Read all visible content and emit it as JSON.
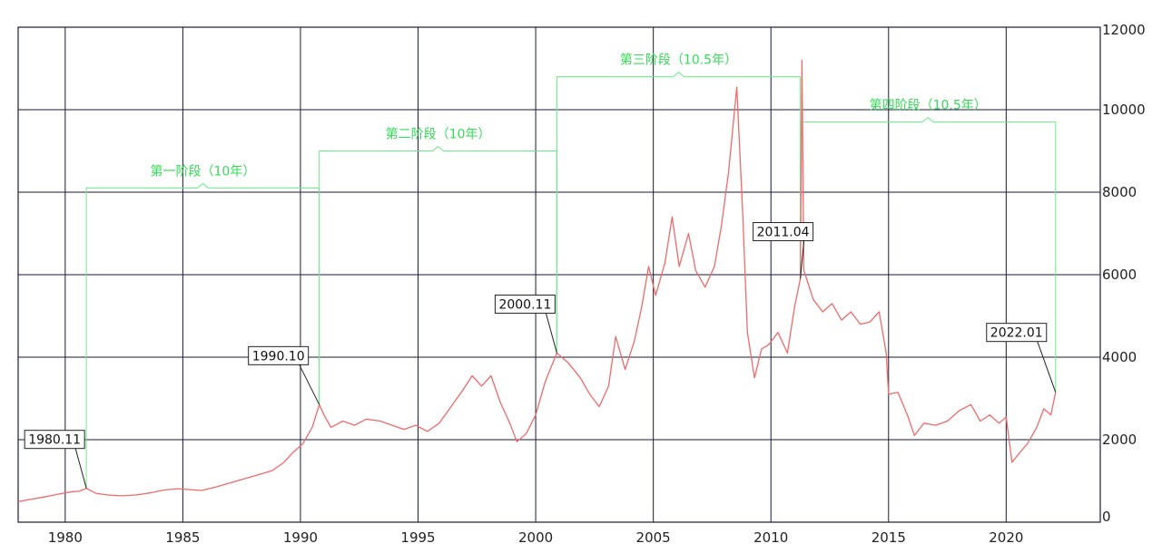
{
  "colors": {
    "price_line": "#f06a6a",
    "grid": "#1a1a3a",
    "phase": "#66ee88",
    "callout": "#222222"
  },
  "chart_data": {
    "type": "line",
    "title": "",
    "xlabel": "",
    "ylabel": "",
    "xlim": [
      1978.0,
      2024.0
    ],
    "ylim": [
      0,
      12000
    ],
    "x_ticks": [
      "1980",
      "1985",
      "1990",
      "1995",
      "2000",
      "2005",
      "2010",
      "2015",
      "2020"
    ],
    "y_ticks": [
      "0",
      "2000",
      "4000",
      "6000",
      "8000",
      "10000",
      "12000"
    ],
    "grid": true,
    "series": [
      {
        "name": "",
        "points": [
          [
            1978.0,
            500
          ],
          [
            1978.6,
            560
          ],
          [
            1979.2,
            620
          ],
          [
            1979.8,
            690
          ],
          [
            1980.3,
            740
          ],
          [
            1980.6,
            750
          ],
          [
            1980.9,
            820
          ],
          [
            1981.3,
            700
          ],
          [
            1981.8,
            660
          ],
          [
            1982.4,
            640
          ],
          [
            1983.0,
            660
          ],
          [
            1983.6,
            710
          ],
          [
            1984.2,
            780
          ],
          [
            1984.8,
            810
          ],
          [
            1985.3,
            790
          ],
          [
            1985.8,
            770
          ],
          [
            1986.4,
            850
          ],
          [
            1987.0,
            950
          ],
          [
            1987.6,
            1050
          ],
          [
            1988.2,
            1150
          ],
          [
            1988.8,
            1250
          ],
          [
            1989.3,
            1450
          ],
          [
            1989.7,
            1700
          ],
          [
            1990.1,
            1900
          ],
          [
            1990.5,
            2300
          ],
          [
            1990.8,
            2850
          ],
          [
            1991.0,
            2600
          ],
          [
            1991.3,
            2300
          ],
          [
            1991.8,
            2450
          ],
          [
            1992.3,
            2350
          ],
          [
            1992.8,
            2500
          ],
          [
            1993.4,
            2450
          ],
          [
            1993.9,
            2350
          ],
          [
            1994.4,
            2250
          ],
          [
            1994.9,
            2350
          ],
          [
            1995.4,
            2200
          ],
          [
            1995.9,
            2400
          ],
          [
            1996.4,
            2800
          ],
          [
            1996.9,
            3200
          ],
          [
            1997.3,
            3550
          ],
          [
            1997.7,
            3300
          ],
          [
            1998.1,
            3550
          ],
          [
            1998.5,
            2900
          ],
          [
            1998.9,
            2400
          ],
          [
            1999.2,
            1950
          ],
          [
            1999.6,
            2150
          ],
          [
            2000.0,
            2600
          ],
          [
            2000.4,
            3400
          ],
          [
            2000.9,
            4100
          ],
          [
            2001.4,
            3850
          ],
          [
            2001.9,
            3500
          ],
          [
            2002.3,
            3100
          ],
          [
            2002.7,
            2800
          ],
          [
            2003.1,
            3300
          ],
          [
            2003.4,
            4500
          ],
          [
            2003.8,
            3700
          ],
          [
            2004.2,
            4400
          ],
          [
            2004.5,
            5200
          ],
          [
            2004.8,
            6200
          ],
          [
            2005.1,
            5500
          ],
          [
            2005.5,
            6300
          ],
          [
            2005.8,
            7400
          ],
          [
            2006.1,
            6200
          ],
          [
            2006.5,
            7000
          ],
          [
            2006.8,
            6100
          ],
          [
            2007.2,
            5700
          ],
          [
            2007.6,
            6200
          ],
          [
            2007.9,
            7200
          ],
          [
            2008.2,
            8500
          ],
          [
            2008.55,
            10550
          ],
          [
            2008.8,
            7500
          ],
          [
            2009.0,
            4600
          ],
          [
            2009.3,
            3500
          ],
          [
            2009.6,
            4200
          ],
          [
            2009.9,
            4300
          ],
          [
            2010.3,
            4600
          ],
          [
            2010.7,
            4100
          ],
          [
            2011.0,
            5200
          ],
          [
            2011.25,
            5900
          ],
          [
            2011.32,
            11200
          ],
          [
            2011.4,
            6100
          ],
          [
            2011.8,
            5400
          ],
          [
            2012.2,
            5100
          ],
          [
            2012.6,
            5300
          ],
          [
            2013.0,
            4900
          ],
          [
            2013.4,
            5100
          ],
          [
            2013.8,
            4800
          ],
          [
            2014.2,
            4850
          ],
          [
            2014.6,
            5100
          ],
          [
            2014.9,
            4100
          ],
          [
            2015.0,
            3100
          ],
          [
            2015.4,
            3150
          ],
          [
            2015.8,
            2600
          ],
          [
            2016.1,
            2100
          ],
          [
            2016.5,
            2400
          ],
          [
            2017.0,
            2350
          ],
          [
            2017.5,
            2450
          ],
          [
            2018.0,
            2700
          ],
          [
            2018.5,
            2850
          ],
          [
            2018.9,
            2450
          ],
          [
            2019.3,
            2600
          ],
          [
            2019.7,
            2400
          ],
          [
            2020.0,
            2550
          ],
          [
            2020.25,
            1450
          ],
          [
            2020.6,
            1700
          ],
          [
            2020.9,
            1900
          ],
          [
            2021.3,
            2300
          ],
          [
            2021.6,
            2750
          ],
          [
            2021.9,
            2600
          ],
          [
            2022.1,
            3150
          ]
        ]
      }
    ],
    "callouts": [
      {
        "label": "1980.11",
        "x": 1980.9,
        "y": 820
      },
      {
        "label": "1990.10",
        "x": 1990.8,
        "y": 2850
      },
      {
        "label": "2000.11",
        "x": 2000.9,
        "y": 4100
      },
      {
        "label": "2011.04",
        "x": 2011.25,
        "y": 5900
      },
      {
        "label": "2022.01",
        "x": 2022.1,
        "y": 3150
      }
    ],
    "phases": [
      {
        "label": "第一阶段（10年）",
        "x_start": 1980.9,
        "x_end": 1990.8,
        "y": 8100
      },
      {
        "label": "第二阶段（10年）",
        "x_start": 1990.8,
        "x_end": 2000.9,
        "y": 9000
      },
      {
        "label": "第三阶段（10.5年）",
        "x_start": 2000.9,
        "x_end": 2011.25,
        "y": 10800
      },
      {
        "label": "第四阶段（10.5年）",
        "x_start": 2011.25,
        "x_end": 2022.1,
        "y": 9700
      }
    ]
  }
}
